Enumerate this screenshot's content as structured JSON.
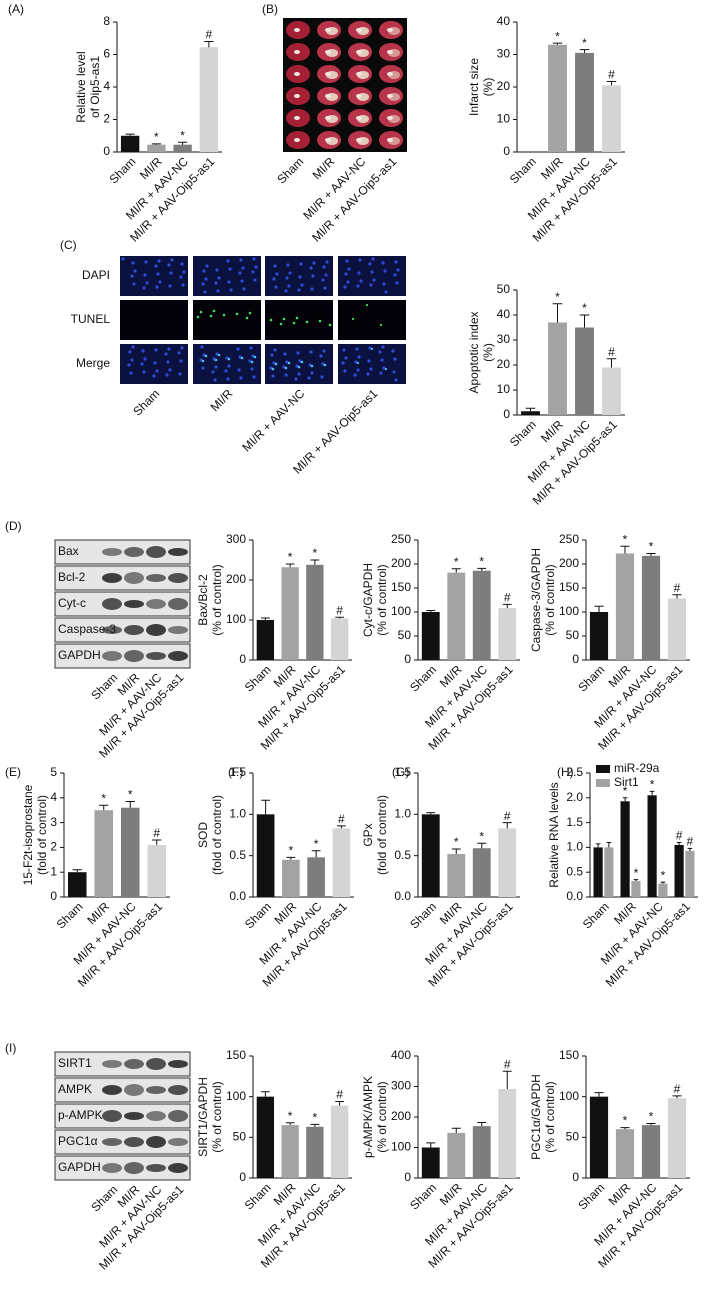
{
  "figure": {
    "panel_labels": [
      "(A)",
      "(B)",
      "(C)",
      "(D)",
      "(E)",
      "(F)",
      "(G)",
      "(H)",
      "(I)"
    ],
    "ttc": {
      "categories": [
        "Sham",
        "MI/R",
        "MI/R + AAV-NC",
        "MI/R + AAV-Oip5-as1"
      ]
    },
    "micrograph": {
      "rows": [
        "DAPI",
        "TUNEL",
        "Merge"
      ],
      "categories": [
        "Sham",
        "MI/R",
        "MI/R + AAV-NC",
        "MI/R + AAV-Oip5-as1"
      ]
    },
    "blots": [
      {
        "rows": [
          "Bax",
          "Bcl-2",
          "Cyt-c",
          "Caspase-3",
          "GAPDH"
        ],
        "categories": [
          "Sham",
          "MI/R",
          "MI/R + AAV-NC",
          "MI/R + AAV-Oip5-as1"
        ]
      },
      {
        "rows": [
          "SIRT1",
          "AMPK",
          "p-AMPK",
          "PGC1α",
          "GAPDH"
        ],
        "categories": [
          "Sham",
          "MI/R",
          "MI/R + AAV-NC",
          "MI/R + AAV-Oip5-as1"
        ]
      }
    ]
  },
  "chart_data": [
    {
      "type": "bar",
      "ylabel": [
        "Relative level",
        "of Oip5-as1"
      ],
      "categories": [
        "Sham",
        "MI/R",
        "MI/R + AAV-NC",
        "MI/R + AAV-Oip5-as1"
      ],
      "values": [
        1.0,
        0.45,
        0.45,
        6.45
      ],
      "errors": [
        0.1,
        0.05,
        0.15,
        0.35
      ],
      "marks": [
        null,
        "*",
        "*",
        "#"
      ],
      "colors": [
        "#111111",
        "#a3a3a3",
        "#7d7d7d",
        "#d4d4d4"
      ],
      "ylim": [
        0,
        8
      ],
      "yticks": [
        0,
        2,
        4,
        6,
        8
      ]
    },
    {
      "type": "bar",
      "ylabel": [
        "Infarct size",
        "(%)"
      ],
      "categories": [
        "Sham",
        "MI/R",
        "MI/R + AAV-NC",
        "MI/R + AAV-Oip5-as1"
      ],
      "values": [
        0,
        33,
        30.5,
        20.5
      ],
      "errors": [
        0,
        0.5,
        1,
        1.2
      ],
      "marks": [
        null,
        "*",
        "*",
        "#"
      ],
      "colors": [
        "#111111",
        "#a3a3a3",
        "#7d7d7d",
        "#d4d4d4"
      ],
      "ylim": [
        0,
        40
      ],
      "yticks": [
        0,
        10,
        20,
        30,
        40
      ]
    },
    {
      "type": "bar",
      "ylabel": [
        "Apoptotic index",
        "(%)"
      ],
      "categories": [
        "Sham",
        "MI/R",
        "MI/R + AAV-NC",
        "MI/R + AAV-Oip5-as1"
      ],
      "values": [
        1.5,
        37,
        35,
        19
      ],
      "errors": [
        1.2,
        7.5,
        5,
        3.5
      ],
      "marks": [
        null,
        "*",
        "*",
        "#"
      ],
      "colors": [
        "#111111",
        "#a3a3a3",
        "#7d7d7d",
        "#d4d4d4"
      ],
      "ylim": [
        0,
        50
      ],
      "yticks": [
        0,
        10,
        20,
        30,
        40,
        50
      ]
    },
    {
      "type": "bar",
      "ylabel": [
        "Bax/Bcl-2",
        "(% of control)"
      ],
      "categories": [
        "Sham",
        "MI/R",
        "MI/R + AAV-NC",
        "MI/R + AAV-Oip5-as1"
      ],
      "values": [
        100,
        232,
        238,
        104
      ],
      "errors": [
        5,
        8,
        12,
        3
      ],
      "marks": [
        null,
        "*",
        "*",
        "#"
      ],
      "colors": [
        "#111111",
        "#a3a3a3",
        "#7d7d7d",
        "#d4d4d4"
      ],
      "ylim": [
        0,
        300
      ],
      "yticks": [
        0,
        100,
        200,
        300
      ]
    },
    {
      "type": "bar",
      "ylabel": [
        "Cyt-c/GAPDH",
        "(% of control)"
      ],
      "categories": [
        "Sham",
        "MI/R",
        "MI/R + AAV-NC",
        "MI/R + AAV-Oip5-as1"
      ],
      "values": [
        100,
        182,
        186,
        108
      ],
      "errors": [
        3,
        8,
        5,
        8
      ],
      "marks": [
        null,
        "*",
        "*",
        "#"
      ],
      "colors": [
        "#111111",
        "#a3a3a3",
        "#7d7d7d",
        "#d4d4d4"
      ],
      "ylim": [
        0,
        250
      ],
      "yticks": [
        0,
        50,
        100,
        150,
        200,
        250
      ]
    },
    {
      "type": "bar",
      "ylabel": [
        "Caspase-3/GAPDH",
        "(% of control)"
      ],
      "categories": [
        "Sham",
        "MI/R",
        "MI/R + AAV-NC",
        "MI/R + AAV-Oip5-as1"
      ],
      "values": [
        100,
        222,
        217,
        128
      ],
      "errors": [
        12,
        15,
        5,
        8
      ],
      "marks": [
        null,
        "*",
        "*",
        "#"
      ],
      "colors": [
        "#111111",
        "#a3a3a3",
        "#7d7d7d",
        "#d4d4d4"
      ],
      "ylim": [
        0,
        250
      ],
      "yticks": [
        0,
        50,
        100,
        150,
        200,
        250
      ]
    },
    {
      "type": "bar",
      "ylabel": [
        "15-F2t-isoprostane",
        "(fold of control)"
      ],
      "categories": [
        "Sham",
        "MI/R",
        "MI/R + AAV-NC",
        "MI/R + AAV-Oip5-as1"
      ],
      "values": [
        1.0,
        3.5,
        3.6,
        2.1
      ],
      "errors": [
        0.1,
        0.2,
        0.25,
        0.2
      ],
      "marks": [
        null,
        "*",
        "*",
        "#"
      ],
      "colors": [
        "#111111",
        "#a3a3a3",
        "#7d7d7d",
        "#d4d4d4"
      ],
      "ylim": [
        0,
        5
      ],
      "yticks": [
        0,
        1,
        2,
        3,
        4,
        5
      ]
    },
    {
      "type": "bar",
      "ylabel": [
        "SOD",
        "(fold of control)"
      ],
      "categories": [
        "Sham",
        "MI/R",
        "MI/R + AAV-NC",
        "MI/R + AAV-Oip5-as1"
      ],
      "values": [
        1.0,
        0.45,
        0.48,
        0.83
      ],
      "errors": [
        0.17,
        0.03,
        0.08,
        0.03
      ],
      "marks": [
        null,
        "*",
        "*",
        "#"
      ],
      "colors": [
        "#111111",
        "#a3a3a3",
        "#7d7d7d",
        "#d4d4d4"
      ],
      "ylim": [
        0,
        1.5
      ],
      "yticks": [
        {
          "value": 0,
          "label": "0.0"
        },
        {
          "value": 0.5,
          "label": "0.5"
        },
        {
          "value": 1,
          "label": "1.0"
        },
        {
          "value": 1.5,
          "label": "1.5"
        }
      ]
    },
    {
      "type": "bar",
      "ylabel": [
        "GPx",
        "(fold of control)"
      ],
      "categories": [
        "Sham",
        "MI/R",
        "MI/R + AAV-NC",
        "MI/R + AAV-Oip5-as1"
      ],
      "values": [
        1.0,
        0.52,
        0.59,
        0.83
      ],
      "errors": [
        0.02,
        0.06,
        0.06,
        0.07
      ],
      "marks": [
        null,
        "*",
        "*",
        "#"
      ],
      "colors": [
        "#111111",
        "#a3a3a3",
        "#7d7d7d",
        "#d4d4d4"
      ],
      "ylim": [
        0,
        1.5
      ],
      "yticks": [
        {
          "value": 0,
          "label": "0.0"
        },
        {
          "value": 0.5,
          "label": "0.5"
        },
        {
          "value": 1,
          "label": "1.0"
        },
        {
          "value": 1.5,
          "label": "1.5"
        }
      ]
    },
    {
      "type": "grouped_bar",
      "ylabel": [
        "Relative RNA levels"
      ],
      "categories": [
        "Sham",
        "MI/R",
        "MI/R + AAV-NC",
        "MI/R + AAV-Oip5-as1"
      ],
      "legend": "upper left",
      "series": [
        {
          "name": "miR-29a",
          "color": "#111111",
          "values": [
            1.0,
            1.93,
            2.05,
            1.05
          ],
          "errors": [
            0.07,
            0.07,
            0.08,
            0.05
          ],
          "marks": [
            null,
            "*",
            "*",
            "#"
          ]
        },
        {
          "name": "Sirt1",
          "color": "#a3a3a3",
          "values": [
            1.0,
            0.32,
            0.27,
            0.93
          ],
          "errors": [
            0.1,
            0.03,
            0.03,
            0.05
          ],
          "marks": [
            null,
            "*",
            "*",
            "#"
          ]
        }
      ],
      "ylim": [
        0,
        2.5
      ],
      "yticks": [
        {
          "value": 0,
          "label": "0.0"
        },
        {
          "value": 0.5,
          "label": "0.5"
        },
        {
          "value": 1,
          "label": "1.0"
        },
        {
          "value": 1.5,
          "label": "1.5"
        },
        {
          "value": 2,
          "label": "2.0"
        },
        {
          "value": 2.5,
          "label": "2.5"
        }
      ]
    },
    {
      "type": "bar",
      "ylabel": [
        "SIRT1/GAPDH",
        "(% of control)"
      ],
      "categories": [
        "Sham",
        "MI/R",
        "MI/R + AAV-NC",
        "MI/R + AAV-Oip5-as1"
      ],
      "values": [
        100,
        65,
        63,
        89
      ],
      "errors": [
        6,
        3,
        3,
        5
      ],
      "marks": [
        null,
        "*",
        "*",
        "#"
      ],
      "colors": [
        "#111111",
        "#a3a3a3",
        "#7d7d7d",
        "#d4d4d4"
      ],
      "ylim": [
        0,
        150
      ],
      "yticks": [
        0,
        50,
        100,
        150
      ]
    },
    {
      "type": "bar",
      "ylabel": [
        "p-AMPK/AMPK",
        "(% of control)"
      ],
      "categories": [
        "Sham",
        "MI/R",
        "MI/R + AAV-NC",
        "MI/R + AAV-Oip5-as1"
      ],
      "values": [
        100,
        148,
        170,
        292
      ],
      "errors": [
        15,
        15,
        12,
        58
      ],
      "marks": [
        null,
        null,
        null,
        "#"
      ],
      "colors": [
        "#111111",
        "#a3a3a3",
        "#7d7d7d",
        "#d4d4d4"
      ],
      "ylim": [
        0,
        400
      ],
      "yticks": [
        0,
        100,
        200,
        300,
        400
      ]
    },
    {
      "type": "bar",
      "ylabel": [
        "PGC1α/GAPDH",
        "(% of control)"
      ],
      "categories": [
        "Sham",
        "MI/R",
        "MI/R + AAV-NC",
        "MI/R + AAV-Oip5-as1"
      ],
      "values": [
        100,
        60,
        65,
        98
      ],
      "errors": [
        5,
        2,
        2,
        3
      ],
      "marks": [
        null,
        "*",
        "*",
        "#"
      ],
      "colors": [
        "#111111",
        "#a3a3a3",
        "#7d7d7d",
        "#d4d4d4"
      ],
      "ylim": [
        0,
        150
      ],
      "yticks": [
        0,
        50,
        100,
        150
      ]
    }
  ]
}
